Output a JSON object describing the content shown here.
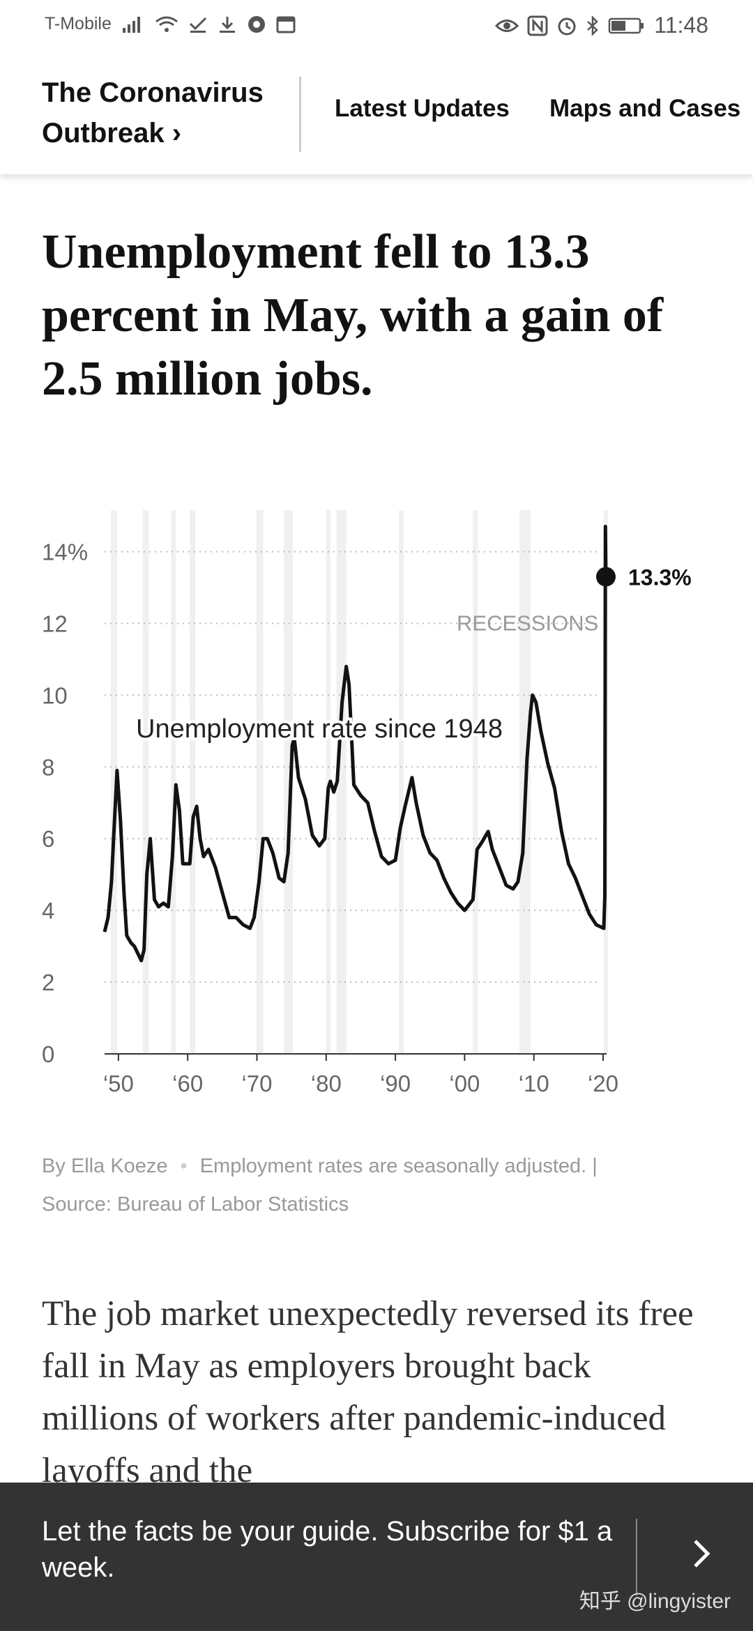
{
  "status_bar": {
    "carrier": "T-Mobile",
    "time": "11:48",
    "icons_left": [
      "signal-icon",
      "wifi-icon",
      "check-icon",
      "download-icon",
      "chrome-icon",
      "calendar-icon"
    ],
    "icons_right": [
      "eye-icon",
      "nfc-icon",
      "alarm-icon",
      "bluetooth-icon",
      "battery-icon"
    ]
  },
  "nav": {
    "section_title": "The Coronavirus Outbreak ›",
    "links": [
      "Latest Updates",
      "Maps and Cases"
    ]
  },
  "article": {
    "headline": "Unemployment fell to 13.3 percent in May, with a gain of 2.5 million jobs.",
    "credit_byline": "By Ella Koeze",
    "credit_dot": "•",
    "credit_note": "Employment rates are seasonally adjusted. |",
    "credit_source": "Source: Bureau of Labor Statistics",
    "body": "The job market unexpectedly reversed its free fall in May as employers brought back millions of workers after pandemic-induced layoffs and the"
  },
  "chart_data": {
    "type": "line",
    "title": "",
    "annotation": "Unemployment rate since 1948",
    "recessions_label": "RECESSIONS",
    "end_label": "13.3%",
    "ylim": [
      0,
      15
    ],
    "xlim": [
      1948,
      2020.5
    ],
    "y_ticks": [
      {
        "value": 0,
        "label": "0"
      },
      {
        "value": 2,
        "label": "2"
      },
      {
        "value": 4,
        "label": "4"
      },
      {
        "value": 6,
        "label": "6"
      },
      {
        "value": 8,
        "label": "8"
      },
      {
        "value": 10,
        "label": "10"
      },
      {
        "value": 12,
        "label": "12"
      },
      {
        "value": 14,
        "label": "14%"
      }
    ],
    "x_ticks": [
      {
        "value": 1950,
        "label": "‘50"
      },
      {
        "value": 1960,
        "label": "‘60"
      },
      {
        "value": 1970,
        "label": "‘70"
      },
      {
        "value": 1980,
        "label": "‘80"
      },
      {
        "value": 1990,
        "label": "‘90"
      },
      {
        "value": 2000,
        "label": "‘00"
      },
      {
        "value": 2010,
        "label": "‘10"
      },
      {
        "value": 2020,
        "label": "‘20"
      }
    ],
    "recessions": [
      [
        1948.9,
        1949.8
      ],
      [
        1953.5,
        1954.4
      ],
      [
        1957.6,
        1958.3
      ],
      [
        1960.3,
        1961.1
      ],
      [
        1969.9,
        1970.9
      ],
      [
        1973.9,
        1975.2
      ],
      [
        1980.0,
        1980.5
      ],
      [
        1981.5,
        1982.9
      ],
      [
        1990.5,
        1991.2
      ],
      [
        2001.2,
        2001.9
      ],
      [
        2007.9,
        2009.5
      ],
      [
        2020.1,
        2020.4
      ]
    ],
    "series": [
      {
        "x": [
          1948,
          1948.5,
          1949,
          1949.3,
          1949.8,
          1950.3,
          1950.8,
          1951.2,
          1951.8,
          1952.3,
          1952.8,
          1953.3,
          1953.7,
          1954.1,
          1954.6,
          1955.2,
          1955.8,
          1956.5,
          1957.2,
          1957.8,
          1958.3,
          1958.8,
          1959.3,
          1959.8,
          1960.3,
          1960.8,
          1961.3,
          1961.8,
          1962.3,
          1963,
          1964,
          1965,
          1966,
          1967,
          1968,
          1969,
          1969.6,
          1970.3,
          1970.9,
          1971.5,
          1972.3,
          1973.2,
          1973.9,
          1974.5,
          1975.1,
          1975.4,
          1976,
          1977,
          1978,
          1979,
          1979.8,
          1980.3,
          1980.6,
          1981.1,
          1981.6,
          1982.3,
          1982.9,
          1983.3,
          1984,
          1985,
          1986,
          1987,
          1988,
          1989,
          1990,
          1990.7,
          1991.4,
          1992.4,
          1993,
          1994,
          1995,
          1996,
          1997,
          1998,
          1999,
          2000,
          2001.2,
          2001.8,
          2002.5,
          2003.4,
          2004,
          2005,
          2006,
          2007,
          2007.7,
          2008.4,
          2009,
          2009.5,
          2009.8,
          2010.3,
          2011,
          2012,
          2013,
          2014,
          2015,
          2016,
          2017,
          2018,
          2019,
          2020.1,
          2020.25,
          2020.33,
          2020.4
        ],
        "y": [
          3.4,
          3.8,
          4.8,
          6.0,
          7.9,
          6.5,
          4.5,
          3.3,
          3.1,
          3.0,
          2.8,
          2.6,
          2.9,
          5.0,
          6.0,
          4.3,
          4.1,
          4.2,
          4.1,
          5.5,
          7.5,
          6.8,
          5.3,
          5.3,
          5.3,
          6.6,
          6.9,
          6.0,
          5.5,
          5.7,
          5.2,
          4.5,
          3.8,
          3.8,
          3.6,
          3.5,
          3.8,
          4.8,
          6.0,
          6.0,
          5.6,
          4.9,
          4.8,
          5.6,
          8.6,
          8.8,
          7.7,
          7.1,
          6.1,
          5.8,
          6.0,
          7.4,
          7.6,
          7.3,
          7.6,
          9.8,
          10.8,
          10.3,
          7.5,
          7.2,
          7.0,
          6.2,
          5.5,
          5.3,
          5.4,
          6.3,
          6.9,
          7.7,
          7.0,
          6.1,
          5.6,
          5.4,
          4.9,
          4.5,
          4.2,
          4.0,
          4.3,
          5.7,
          5.9,
          6.2,
          5.7,
          5.2,
          4.7,
          4.6,
          4.8,
          5.6,
          8.2,
          9.5,
          10.0,
          9.8,
          9.0,
          8.1,
          7.4,
          6.2,
          5.3,
          4.9,
          4.4,
          3.9,
          3.6,
          3.5,
          4.4,
          14.7,
          13.3
        ]
      }
    ]
  }
}
